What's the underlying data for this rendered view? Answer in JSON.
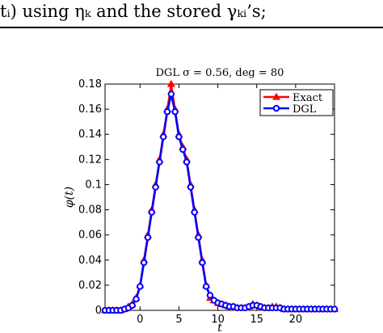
{
  "page": {
    "text_line": "tᵢ) using ηₖ and the stored γₖᵢ’s;"
  },
  "chart_data": {
    "type": "line",
    "title": "DGL σ = 0.56, deg = 80",
    "xlabel": "t",
    "ylabel": "φ(t)",
    "xlim": [
      -4.5,
      25
    ],
    "ylim": [
      0,
      0.18
    ],
    "x_ticks": [
      0,
      5,
      10,
      15,
      20
    ],
    "y_ticks": [
      0,
      0.02,
      0.04,
      0.06,
      0.08,
      0.1,
      0.12,
      0.14,
      0.16,
      0.18
    ],
    "y_tick_labels": [
      "0",
      "0.02",
      "0.04",
      "0.06",
      "0.08",
      "0.1",
      "0.12",
      "0.14",
      "0.16",
      "0.18"
    ],
    "grid": false,
    "legend_position": "top-right",
    "x": [
      -4.5,
      -4,
      -3.5,
      -3,
      -2.5,
      -2,
      -1.5,
      -1,
      -0.5,
      0,
      0.5,
      1,
      1.5,
      2,
      2.5,
      3,
      3.5,
      4,
      4.5,
      5,
      5.5,
      6,
      6.5,
      7,
      7.5,
      8,
      8.5,
      9,
      9.5,
      10,
      10.5,
      11,
      11.5,
      12,
      12.5,
      13,
      13.5,
      14,
      14.5,
      15,
      15.5,
      16,
      16.5,
      17,
      17.5,
      18,
      18.5,
      19,
      19.5,
      20,
      20.5,
      21,
      21.5,
      22,
      22.5,
      23,
      23.5,
      24,
      24.5,
      25
    ],
    "series": [
      {
        "name": "Exact",
        "color": "#ff0000",
        "marker": "triangle",
        "values": [
          0,
          0,
          0,
          0,
          0,
          0.001,
          0.003,
          0.005,
          0.01,
          0.02,
          0.04,
          0.06,
          0.08,
          0.1,
          0.12,
          0.14,
          0.16,
          0.18,
          0.16,
          0.14,
          0.13,
          0.12,
          0.1,
          0.08,
          0.06,
          0.04,
          0.02,
          0.01,
          0.008,
          0.006,
          0.005,
          0.004,
          0.003,
          0.003,
          0.002,
          0.002,
          0.002,
          0.003,
          0.005,
          0.004,
          0.003,
          0.002,
          0.002,
          0.003,
          0.003,
          0.002,
          0.001,
          0.001,
          0.001,
          0.001,
          0.001,
          0.001,
          0.001,
          0.001,
          0.001,
          0.001,
          0.001,
          0.001,
          0.001,
          0.001
        ]
      },
      {
        "name": "DGL",
        "color": "#0000ff",
        "marker": "circle",
        "values": [
          0,
          0,
          0,
          0,
          0,
          0.001,
          0.002,
          0.004,
          0.009,
          0.019,
          0.038,
          0.058,
          0.078,
          0.098,
          0.118,
          0.138,
          0.158,
          0.172,
          0.158,
          0.138,
          0.128,
          0.118,
          0.098,
          0.078,
          0.058,
          0.038,
          0.019,
          0.012,
          0.008,
          0.006,
          0.005,
          0.004,
          0.003,
          0.003,
          0.002,
          0.002,
          0.002,
          0.003,
          0.004,
          0.004,
          0.003,
          0.002,
          0.002,
          0.002,
          0.002,
          0.002,
          0.001,
          0.001,
          0.001,
          0.001,
          0.001,
          0.001,
          0.001,
          0.001,
          0.001,
          0.001,
          0.001,
          0.001,
          0.001,
          0.001
        ]
      }
    ]
  }
}
